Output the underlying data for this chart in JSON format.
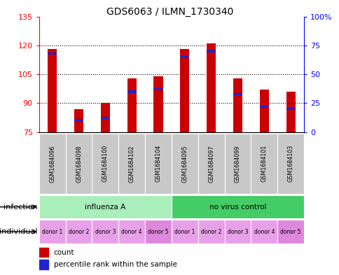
{
  "title": "GDS6063 / ILMN_1730340",
  "samples": [
    "GSM1684096",
    "GSM1684098",
    "GSM1684100",
    "GSM1684102",
    "GSM1684104",
    "GSM1684095",
    "GSM1684097",
    "GSM1684099",
    "GSM1684101",
    "GSM1684103"
  ],
  "count_values": [
    118,
    87,
    90,
    103,
    104,
    118,
    121,
    103,
    97,
    96
  ],
  "percentile_values": [
    68,
    10,
    12,
    35,
    37,
    65,
    70,
    33,
    22,
    20
  ],
  "ylim_left": [
    75,
    135
  ],
  "ylim_right": [
    0,
    100
  ],
  "yticks_left": [
    75,
    90,
    105,
    120,
    135
  ],
  "yticks_right": [
    0,
    25,
    50,
    75,
    100
  ],
  "bar_color": "#cc0000",
  "percentile_color": "#2222cc",
  "infection_groups": [
    {
      "label": "influenza A",
      "start": 0,
      "end": 5,
      "color": "#aaeebb"
    },
    {
      "label": "no virus control",
      "start": 5,
      "end": 10,
      "color": "#44cc66"
    }
  ],
  "individual_labels": [
    "donor 1",
    "donor 2",
    "donor 3",
    "donor 4",
    "donor 5",
    "donor 1",
    "donor 2",
    "donor 3",
    "donor 4",
    "donor 5"
  ],
  "individual_colors": [
    "#e8a0e8",
    "#e8a0e8",
    "#e8a0e8",
    "#e8a0e8",
    "#dd88dd",
    "#e8a0e8",
    "#e8a0e8",
    "#e8a0e8",
    "#e8a0e8",
    "#dd88dd"
  ],
  "legend_count_label": "count",
  "legend_percentile_label": "percentile rank within the sample",
  "infection_label": "infection",
  "individual_label": "individual",
  "bar_width": 0.35,
  "base_value": 75
}
